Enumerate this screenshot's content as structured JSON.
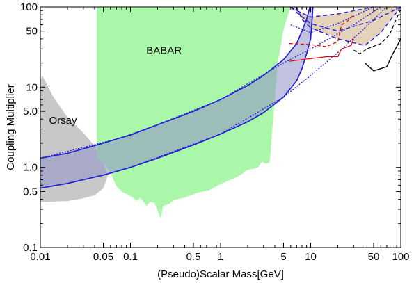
{
  "chart_data": {
    "type": "area",
    "title": "",
    "xlabel": "(Pseudo)Scalar Mass[GeV]",
    "ylabel": "Coupling Multiplier",
    "xscale": "log",
    "yscale": "log",
    "xlim": [
      0.01,
      100
    ],
    "ylim": [
      0.1,
      100
    ],
    "x_ticks": [
      {
        "value": 0.01,
        "label": "0.01"
      },
      {
        "value": 0.05,
        "label": "0.05"
      },
      {
        "value": 0.1,
        "label": "0.1"
      },
      {
        "value": 0.5,
        "label": "0.5"
      },
      {
        "value": 1,
        "label": "1"
      },
      {
        "value": 5,
        "label": "5"
      },
      {
        "value": 10,
        "label": "10"
      },
      {
        "value": 50,
        "label": "50"
      },
      {
        "value": 100,
        "label": "100"
      }
    ],
    "y_ticks": [
      {
        "value": 0.1,
        "label": "0.1"
      },
      {
        "value": 0.5,
        "label": "0.5"
      },
      {
        "value": 1,
        "label": "1.0"
      },
      {
        "value": 5,
        "label": "5.0"
      },
      {
        "value": 10,
        "label": "10"
      },
      {
        "value": 50,
        "label": "50"
      },
      {
        "value": 100,
        "label": "100"
      }
    ],
    "grid": false,
    "colors": {
      "babar": "#aaf7aa",
      "orsay": "#c8c8c8",
      "band_fill": "#9090c8",
      "band_edge": "#1a1ad8",
      "tan_fill": "#d2b48c",
      "red": "#e00000",
      "black": "#000000"
    },
    "regions": [
      {
        "name": "BABAR",
        "label": "BABAR",
        "label_at": [
          0.15,
          26
        ],
        "polygon": [
          [
            0.0423,
            100
          ],
          [
            6.0,
            100
          ],
          [
            5.4,
            70
          ],
          [
            5.0,
            52
          ],
          [
            4.8,
            40
          ],
          [
            4.6,
            30
          ],
          [
            4.3,
            20
          ],
          [
            4.1,
            10
          ],
          [
            4.0,
            7
          ],
          [
            3.9,
            5
          ],
          [
            3.75,
            3
          ],
          [
            3.6,
            1.6
          ],
          [
            3.5,
            1.15
          ],
          [
            3.15,
            1.1
          ],
          [
            2.9,
            1.18
          ],
          [
            2.6,
            1.0
          ],
          [
            2.3,
            0.96
          ],
          [
            2.0,
            0.93
          ],
          [
            1.6,
            0.78
          ],
          [
            1.3,
            0.7
          ],
          [
            1.0,
            0.62
          ],
          [
            0.75,
            0.52
          ],
          [
            0.55,
            0.48
          ],
          [
            0.4,
            0.42
          ],
          [
            0.3,
            0.39
          ],
          [
            0.27,
            0.35
          ],
          [
            0.23,
            0.33
          ],
          [
            0.218,
            0.23
          ],
          [
            0.2,
            0.285
          ],
          [
            0.185,
            0.36
          ],
          [
            0.165,
            0.37
          ],
          [
            0.15,
            0.33
          ],
          [
            0.14,
            0.37
          ],
          [
            0.128,
            0.42
          ],
          [
            0.118,
            0.38
          ],
          [
            0.1,
            0.44
          ],
          [
            0.082,
            0.49
          ],
          [
            0.07,
            0.58
          ],
          [
            0.06,
            0.86
          ],
          [
            0.05,
            1.12
          ],
          [
            0.0423,
            1.3
          ]
        ]
      },
      {
        "name": "Orsay",
        "label": "Orsay",
        "label_at": [
          0.0125,
          3.5
        ],
        "polygon": [
          [
            0.01,
            12
          ],
          [
            0.0105,
            14
          ],
          [
            0.014,
            7.5
          ],
          [
            0.02,
            4.2
          ],
          [
            0.03,
            2.7
          ],
          [
            0.04,
            1.85
          ],
          [
            0.05,
            1.15
          ],
          [
            0.056,
            0.78
          ],
          [
            0.05,
            0.55
          ],
          [
            0.04,
            0.45
          ],
          [
            0.03,
            0.41
          ],
          [
            0.02,
            0.38
          ],
          [
            0.01,
            0.37
          ]
        ]
      },
      {
        "name": "band",
        "upper": [
          [
            0.01,
            1.3
          ],
          [
            0.02,
            1.5
          ],
          [
            0.05,
            2.0
          ],
          [
            0.1,
            2.55
          ],
          [
            0.2,
            3.4
          ],
          [
            0.5,
            5.0
          ],
          [
            1,
            7.0
          ],
          [
            2,
            10.5
          ],
          [
            3,
            14
          ],
          [
            5,
            22
          ],
          [
            7,
            35
          ],
          [
            8,
            50
          ],
          [
            9,
            70
          ],
          [
            9.8,
            100
          ]
        ],
        "lower": [
          [
            0.01,
            0.55
          ],
          [
            0.02,
            0.63
          ],
          [
            0.05,
            0.8
          ],
          [
            0.1,
            1.0
          ],
          [
            0.2,
            1.3
          ],
          [
            0.5,
            1.9
          ],
          [
            1,
            2.6
          ],
          [
            2,
            3.7
          ],
          [
            3,
            4.8
          ],
          [
            5,
            7.5
          ],
          [
            7,
            12
          ],
          [
            8,
            17
          ],
          [
            9,
            26
          ],
          [
            10,
            40
          ],
          [
            10.6,
            100
          ]
        ]
      }
    ],
    "series": [
      {
        "style": "dashed",
        "points": [
          [
            6.0,
            100
          ],
          [
            7.0,
            90
          ],
          [
            10,
            75
          ],
          [
            20,
            82
          ],
          [
            50,
            100
          ]
        ]
      },
      {
        "style": "dashed",
        "points": [
          [
            6.0,
            100
          ],
          [
            7.5,
            80
          ],
          [
            10,
            62
          ],
          [
            20,
            50
          ],
          [
            50,
            68
          ],
          [
            100,
            100
          ]
        ]
      },
      {
        "style": "dashed",
        "points": [
          [
            7.0,
            100
          ],
          [
            8.0,
            70
          ],
          [
            10,
            55
          ],
          [
            20,
            40
          ],
          [
            40,
            33
          ],
          [
            60,
            48
          ],
          [
            100,
            100
          ]
        ]
      },
      {
        "style": "dotted",
        "points": [
          [
            6.0,
            60
          ],
          [
            10,
            48
          ],
          [
            20,
            62
          ],
          [
            50,
            100
          ]
        ]
      },
      {
        "style": "dotted",
        "points": [
          [
            0.01,
            1.3
          ],
          [
            0.1,
            2.5
          ],
          [
            1,
            7.0
          ],
          [
            5,
            20
          ],
          [
            10,
            30
          ],
          [
            30,
            60
          ],
          [
            60,
            100
          ]
        ]
      },
      {
        "style": "dotted",
        "points": [
          [
            0.05,
            0.8
          ],
          [
            0.1,
            1.0
          ],
          [
            1,
            2.6
          ],
          [
            5,
            7.5
          ],
          [
            10,
            14
          ],
          [
            20,
            27
          ],
          [
            40,
            55
          ],
          [
            70,
            100
          ]
        ]
      },
      {
        "style": "red-dashed",
        "points": [
          [
            5.8,
            35
          ],
          [
            10,
            34
          ],
          [
            15,
            32
          ],
          [
            20,
            37
          ],
          [
            22,
            60
          ],
          [
            25,
            65
          ],
          [
            30,
            80
          ]
        ]
      },
      {
        "style": "red-solid",
        "points": [
          [
            5.8,
            21
          ],
          [
            8,
            22
          ],
          [
            15,
            24
          ],
          [
            20,
            24
          ],
          [
            22,
            30
          ],
          [
            28,
            33
          ],
          [
            30,
            40
          ]
        ]
      },
      {
        "style": "black-dashed",
        "points": [
          [
            30,
            29
          ],
          [
            35,
            26
          ],
          [
            42,
            30
          ],
          [
            60,
            35
          ],
          [
            75,
            45
          ],
          [
            100,
            95
          ]
        ]
      },
      {
        "style": "black-solid",
        "points": [
          [
            40,
            20
          ],
          [
            50,
            16
          ],
          [
            70,
            18
          ],
          [
            80,
            25
          ],
          [
            90,
            32
          ],
          [
            100,
            40
          ]
        ]
      }
    ]
  }
}
